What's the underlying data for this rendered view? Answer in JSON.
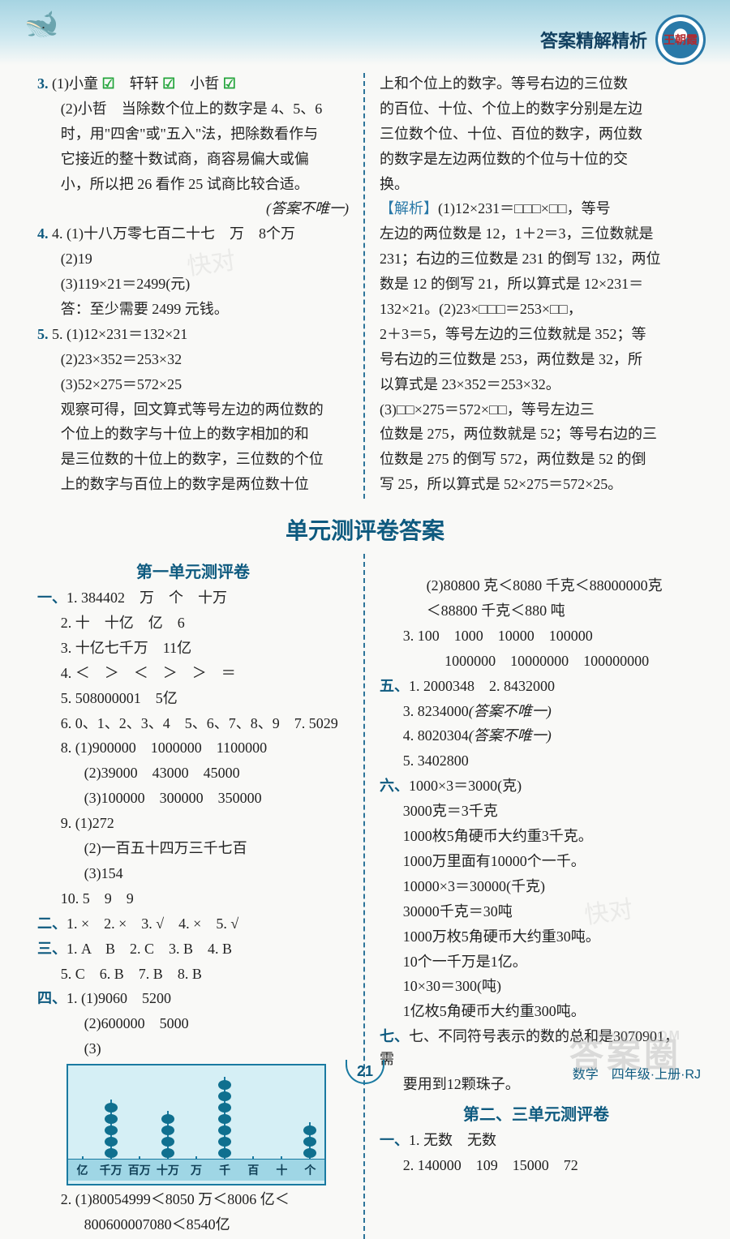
{
  "header": {
    "title": "答案精解精析",
    "badge": "王朝霞"
  },
  "top": {
    "left": {
      "q3_1": "3. (1)小童 ☑　轩轩 ☑　小哲 ☑",
      "q3_2a": "(2)小哲　当除数个位上的数字是 4、5、6",
      "q3_2b": "时，用\"四舍\"或\"五入\"法，把除数看作与",
      "q3_2c": "它接近的整十数试商，商容易偏大或偏",
      "q3_2d": "小，所以把 26 看作 25 试商比较合适。",
      "q3_note": "(答案不唯一)",
      "q4_1": "4. (1)十八万零七百二十七　万　8个万",
      "q4_2": "(2)19",
      "q4_3": "(3)119×21＝2499(元)",
      "q4_3b": "答：至少需要 2499 元钱。",
      "q5_1": "5. (1)12×231＝132×21",
      "q5_2": "(2)23×352＝253×32",
      "q5_3": "(3)52×275＝572×25",
      "q5_obs1": "观察可得，回文算式等号左边的两位数的",
      "q5_obs2": "个位上的数字与十位上的数字相加的和",
      "q5_obs3": "是三位数的十位上的数字，三位数的个位",
      "q5_obs4": "上的数字与百位上的数字是两位数十位"
    },
    "right": {
      "r1": "上和个位上的数字。等号右边的三位数",
      "r2": "的百位、十位、个位上的数字分别是左边",
      "r3": "三位数个位、十位、百位的数字，两位数",
      "r4": "的数字是左边两位数的个位与十位的交",
      "r5": "换。",
      "an_label": "【解析】",
      "an1": "(1)12×231＝□□□×□□，等号",
      "an2": "左边的两位数是 12，1＋2＝3，三位数就是",
      "an3": "231；右边的三位数是 231 的倒写 132，两位",
      "an4": "数是 12 的倒写 21，所以算式是 12×231＝",
      "an5": "132×21。(2)23×□□□＝253×□□，",
      "an6": "2＋3＝5，等号左边的三位数就是 352；等",
      "an7": "号右边的三位数是 253，两位数是 32，所",
      "an8": "以算式是 23×352＝253×32。",
      "an9": "(3)□□×275＝572×□□，等号左边三",
      "an10": "位数是 275，两位数就是 52；等号右边的三",
      "an11": "位数是 275 的倒写 572，两位数是 52 的倒",
      "an12": "写 25，所以算式是 52×275＝572×25。"
    }
  },
  "section_title": "单元测评卷答案",
  "unit1_title": "第一单元测评卷",
  "unit1_left": {
    "i1": "一、1. 384402　万　个　十万",
    "i2": "2. 十　十亿　亿　6",
    "i3": "3. 十亿七千万　11亿",
    "i4": "4. ＜　＞　＜　＞　＞　＝",
    "i5": "5. 508000001　5亿",
    "i6": "6. 0、1、2、3、4　5、6、7、8、9　7. 5029",
    "i8a": "8. (1)900000　1000000　1100000",
    "i8b": "(2)39000　43000　45000",
    "i8c": "(3)100000　300000　350000",
    "i9a": "9. (1)272",
    "i9b": "(2)一百五十四万三千七百",
    "i9c": "(3)154",
    "i10": "10. 5　9　9",
    "ii": "二、1. ×　2. ×　3. √　4. ×　5. √",
    "iii1": "三、1. A　B　2. C　3. B　4. B",
    "iii2": "5. C　6. B　7. B　8. B",
    "iv1": "四、1. (1)9060　5200",
    "iv2": "(2)600000　5000",
    "iv3": "(3)",
    "abacus_labels": [
      "亿",
      "千万",
      "百万",
      "十万",
      "万",
      "千",
      "百",
      "十",
      "个"
    ],
    "abacus_beads": [
      0,
      5,
      0,
      4,
      0,
      7,
      0,
      0,
      3
    ],
    "iv_2a": "2. (1)80054999＜8050 万＜8006 亿＜",
    "iv_2b": "800600007080＜8540亿"
  },
  "unit1_right": {
    "r2_2": "(2)80800 克＜8080 千克＜88000000克",
    "r2_2b": "＜88800 千克＜880 吨",
    "r3a": "3. 100　1000　10000　100000",
    "r3b": "　 1000000　10000000　100000000",
    "v1": "五、1. 2000348　2. 8432000",
    "v3": "3. 8234000(答案不唯一)",
    "v4": "4. 8020304(答案不唯一)",
    "v5": "5. 3402800",
    "vi1": "六、1000×3＝3000(克)",
    "vi2": "3000克＝3千克",
    "vi3": "1000枚5角硬币大约重3千克。",
    "vi4": "1000万里面有10000个一千。",
    "vi5": "10000×3＝30000(千克)",
    "vi6": "30000千克＝30吨",
    "vi7": "1000万枚5角硬币大约重30吨。",
    "vi8": "10个一千万是1亿。",
    "vi9": "10×30＝300(吨)",
    "vi10": "1亿枚5角硬币大约重300吨。",
    "vii1": "七、不同符号表示的数的总和是3070901，需",
    "vii2": "要用到12颗珠子。"
  },
  "unit23_title": "第二、三单元测评卷",
  "unit23": {
    "i1": "一、1. 无数　无数",
    "i2": "2. 140000　109　15000　72"
  },
  "page_number": "21",
  "footer": "数学　四年级·上册·RJ",
  "watermark": "答案圈",
  "watermark2": "MXQE.COM",
  "colors": {
    "accent": "#0e5a7f",
    "teal": "#2a79a8"
  }
}
